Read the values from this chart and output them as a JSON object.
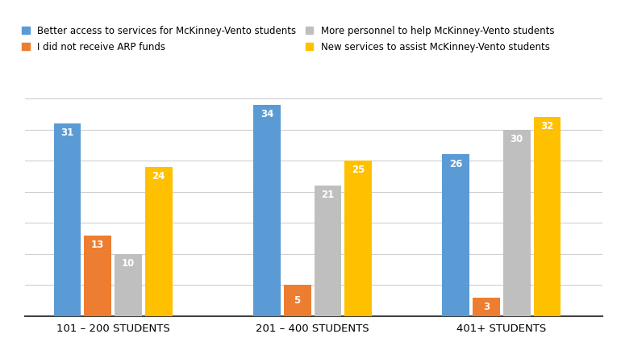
{
  "categories": [
    "101 – 200 STUDENTS",
    "201 – 400 STUDENTS",
    "401+ STUDENTS"
  ],
  "series": [
    {
      "label": "Better access to services for McKinney-Vento students",
      "values": [
        31,
        34,
        26
      ],
      "color": "#5B9BD5"
    },
    {
      "label": "I did not receive ARP funds",
      "values": [
        13,
        5,
        3
      ],
      "color": "#ED7D31"
    },
    {
      "label": "More personnel to help McKinney-Vento students",
      "values": [
        10,
        21,
        30
      ],
      "color": "#BFBFBF"
    },
    {
      "label": "New services to assist McKinney-Vento students",
      "values": [
        24,
        25,
        32
      ],
      "color": "#FFC000"
    }
  ],
  "ylim": [
    0,
    37
  ],
  "grid_lines": [
    5,
    10,
    15,
    20,
    25,
    30,
    35
  ],
  "bar_width": 0.13,
  "background_color": "#FFFFFF",
  "label_fontsize": 8.5,
  "legend_fontsize": 8.5,
  "tick_fontsize": 9.5,
  "group_centers": [
    0.32,
    1.27,
    2.17
  ]
}
